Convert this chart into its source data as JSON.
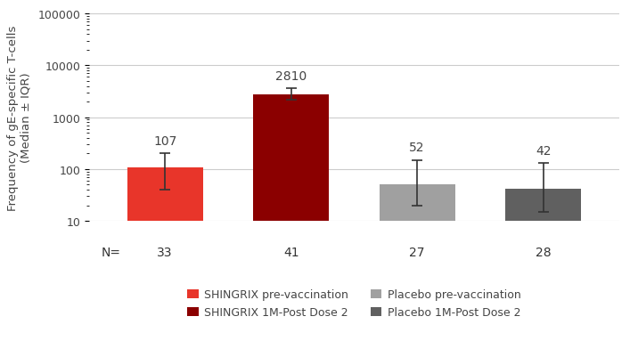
{
  "medians": [
    107,
    2810,
    52,
    42
  ],
  "err_low_vals": [
    40,
    2200,
    20,
    15
  ],
  "err_high_vals": [
    200,
    3600,
    150,
    130
  ],
  "bar_colors": [
    "#e8352a",
    "#8b0000",
    "#a0a0a0",
    "#606060"
  ],
  "labels": [
    "107",
    "2810",
    "52",
    "42"
  ],
  "n_labels": [
    "33",
    "41",
    "27",
    "28"
  ],
  "x_positions": [
    1,
    2,
    3,
    4
  ],
  "ylim": [
    10,
    100000
  ],
  "ylabel": "Frequency of gE-specific T-cells\n(Median ± IQR)",
  "n_prefix": "N=",
  "legend_labels": [
    "SHINGRIX pre-vaccination",
    "SHINGRIX 1M-Post Dose 2",
    "Placebo pre-vaccination",
    "Placebo 1M-Post Dose 2"
  ],
  "legend_colors": [
    "#e8352a",
    "#8b0000",
    "#a0a0a0",
    "#606060"
  ],
  "yticks": [
    10,
    100,
    1000,
    10000,
    100000
  ],
  "ytick_labels": [
    "10",
    "100",
    "1000",
    "10000",
    "100000"
  ],
  "background_color": "#ffffff",
  "grid_color": "#cccccc",
  "bar_width": 0.6
}
